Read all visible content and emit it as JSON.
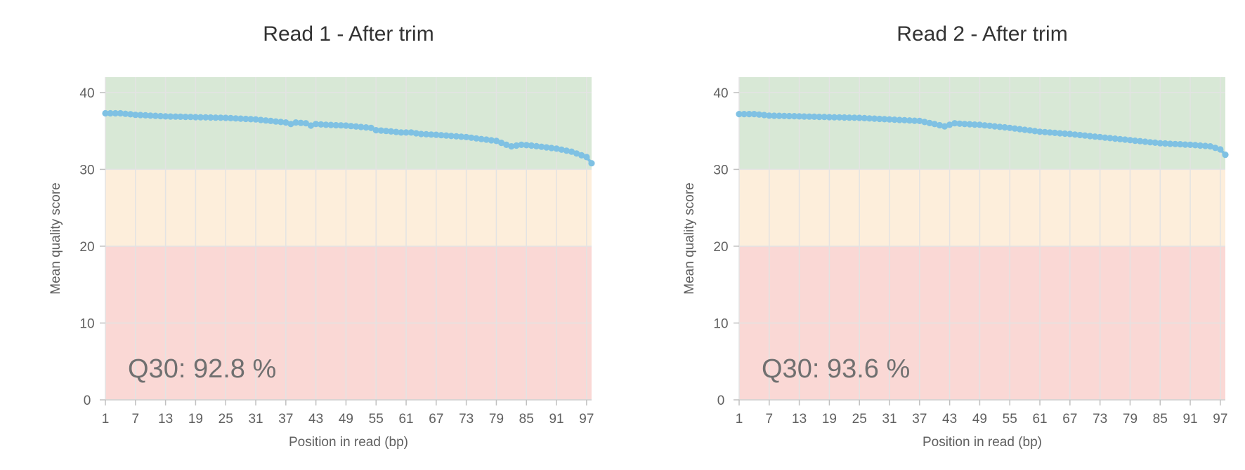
{
  "colors": {
    "series": "#7fc1e3",
    "good_zone": "#d8e8d6",
    "warn_zone": "#fdeedb",
    "bad_zone": "#fad8d5"
  },
  "chart_data": [
    {
      "type": "line",
      "title": "Read 1 - After trim",
      "xlabel": "Position in read (bp)",
      "ylabel": "Mean quality score",
      "ylim": [
        0,
        42
      ],
      "xlim": [
        1,
        98
      ],
      "x_ticks": [
        "1",
        "7",
        "13",
        "19",
        "25",
        "31",
        "37",
        "43",
        "49",
        "55",
        "61",
        "67",
        "73",
        "79",
        "85",
        "91",
        "97"
      ],
      "y_ticks": [
        "0",
        "10",
        "20",
        "30",
        "40"
      ],
      "annotation": "Q30: 92.8 %",
      "grid": true,
      "zones": [
        {
          "from": 30,
          "to": 42,
          "color": "#d8e8d6"
        },
        {
          "from": 20,
          "to": 30,
          "color": "#fdeedb"
        },
        {
          "from": 0,
          "to": 20,
          "color": "#fad8d5"
        }
      ],
      "series": [
        {
          "key_points": [
            [
              1,
              37.3
            ],
            [
              4,
              37.3
            ],
            [
              7,
              37.1
            ],
            [
              13,
              36.9
            ],
            [
              19,
              36.8
            ],
            [
              25,
              36.7
            ],
            [
              31,
              36.5
            ],
            [
              37,
              36.1
            ],
            [
              38,
              35.9
            ],
            [
              39,
              36.1
            ],
            [
              41,
              36.0
            ],
            [
              42,
              35.7
            ],
            [
              43,
              35.9
            ],
            [
              45,
              35.8
            ],
            [
              49,
              35.7
            ],
            [
              54,
              35.4
            ],
            [
              55,
              35.1
            ],
            [
              57,
              35.0
            ],
            [
              60,
              34.8
            ],
            [
              62,
              34.8
            ],
            [
              64,
              34.6
            ],
            [
              67,
              34.5
            ],
            [
              73,
              34.2
            ],
            [
              79,
              33.7
            ],
            [
              81,
              33.2
            ],
            [
              82,
              33.0
            ],
            [
              84,
              33.2
            ],
            [
              86,
              33.1
            ],
            [
              91,
              32.7
            ],
            [
              94,
              32.3
            ],
            [
              97,
              31.6
            ],
            [
              98,
              30.8
            ]
          ]
        }
      ]
    },
    {
      "type": "line",
      "title": "Read 2 - After trim",
      "xlabel": "Position in read (bp)",
      "ylabel": "Mean quality score",
      "ylim": [
        0,
        42
      ],
      "xlim": [
        1,
        98
      ],
      "x_ticks": [
        "1",
        "7",
        "13",
        "19",
        "25",
        "31",
        "37",
        "43",
        "49",
        "55",
        "61",
        "67",
        "73",
        "79",
        "85",
        "91",
        "97"
      ],
      "y_ticks": [
        "0",
        "10",
        "20",
        "30",
        "40"
      ],
      "annotation": "Q30: 93.6 %",
      "grid": true,
      "zones": [
        {
          "from": 30,
          "to": 42,
          "color": "#d8e8d6"
        },
        {
          "from": 20,
          "to": 30,
          "color": "#fdeedb"
        },
        {
          "from": 0,
          "to": 20,
          "color": "#fad8d5"
        }
      ],
      "series": [
        {
          "key_points": [
            [
              1,
              37.2
            ],
            [
              4,
              37.2
            ],
            [
              7,
              37.0
            ],
            [
              13,
              36.9
            ],
            [
              19,
              36.8
            ],
            [
              25,
              36.7
            ],
            [
              31,
              36.5
            ],
            [
              37,
              36.3
            ],
            [
              40,
              35.9
            ],
            [
              42,
              35.6
            ],
            [
              44,
              36.0
            ],
            [
              46,
              35.9
            ],
            [
              49,
              35.8
            ],
            [
              55,
              35.4
            ],
            [
              61,
              34.9
            ],
            [
              67,
              34.6
            ],
            [
              73,
              34.2
            ],
            [
              79,
              33.8
            ],
            [
              85,
              33.4
            ],
            [
              91,
              33.2
            ],
            [
              95,
              33.0
            ],
            [
              97,
              32.6
            ],
            [
              98,
              31.9
            ]
          ]
        }
      ]
    }
  ]
}
